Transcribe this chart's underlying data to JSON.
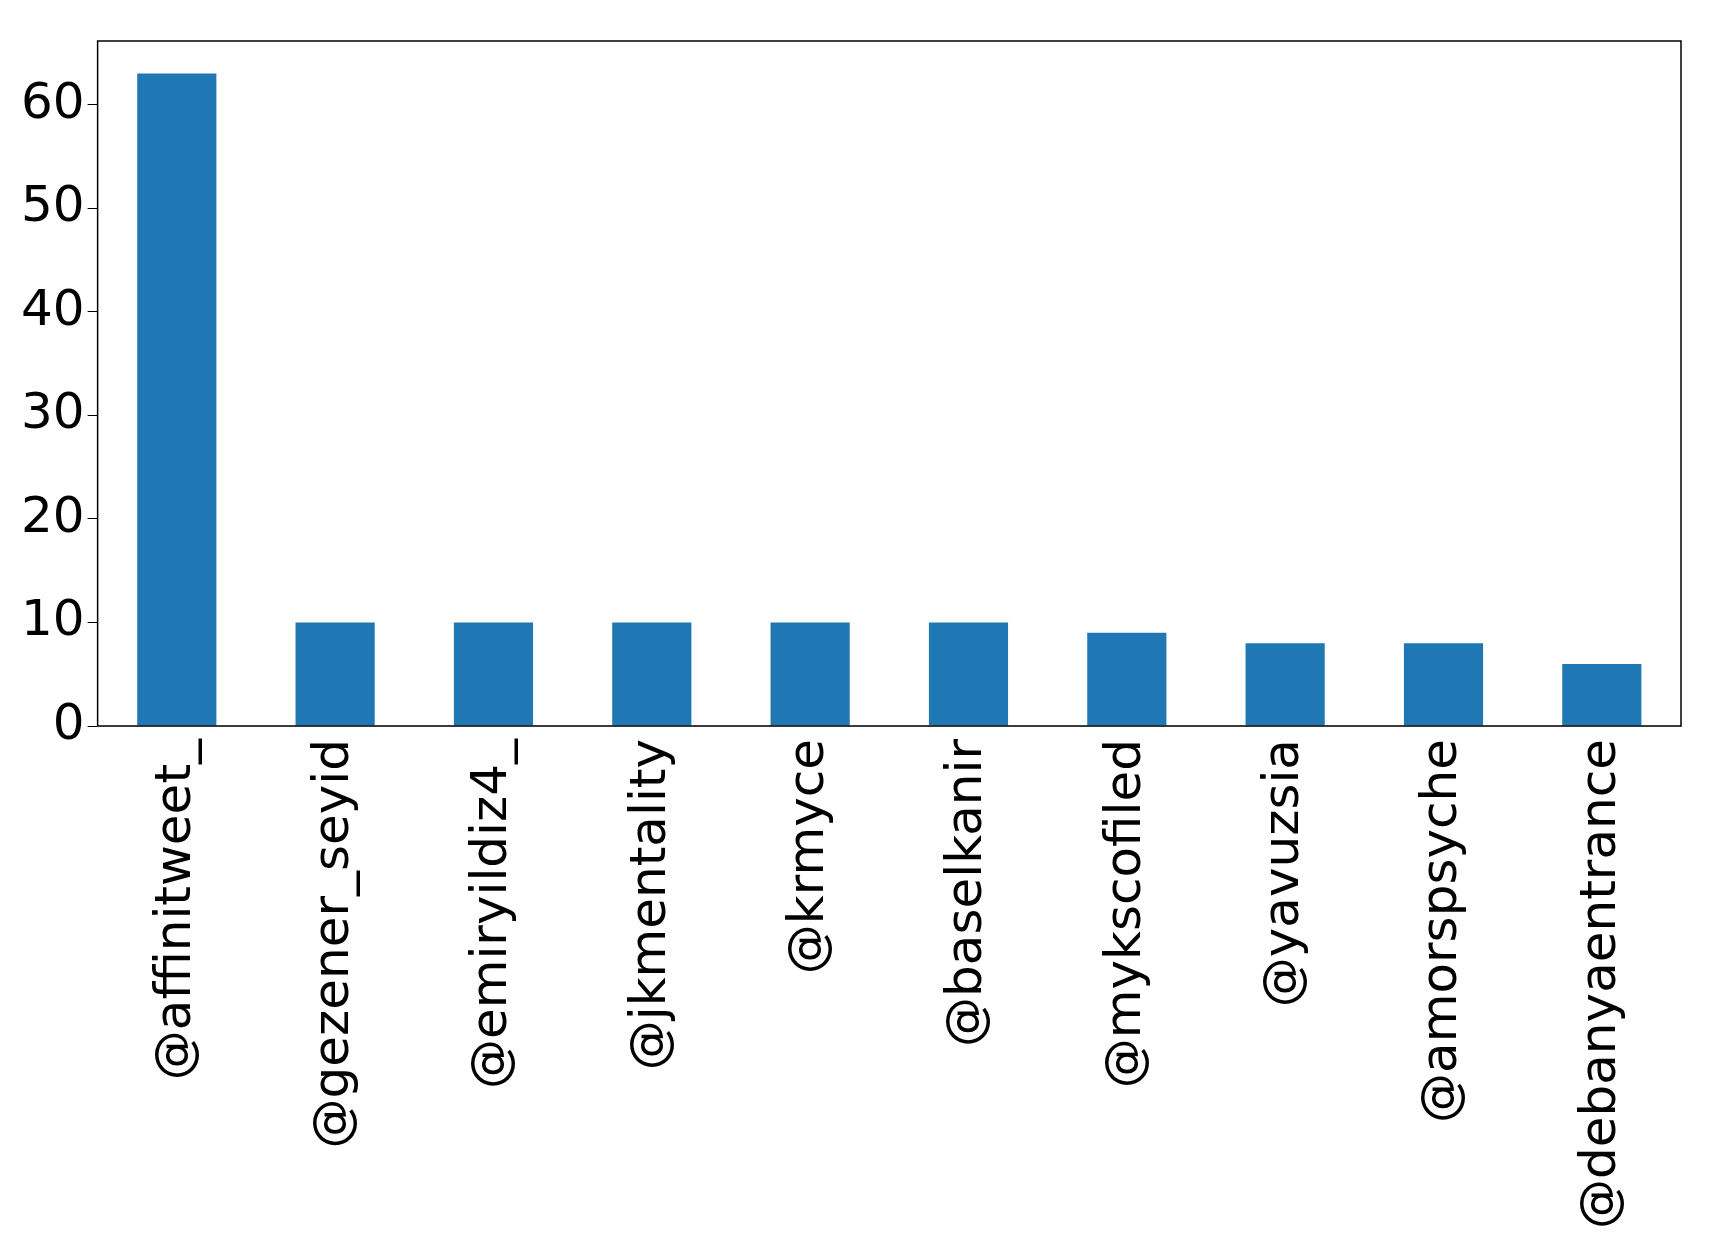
{
  "chart_data": {
    "type": "bar",
    "categories": [
      "@affinitweet_",
      "@gezener_seyid",
      "@emiryildiz4_",
      "@jkmentality",
      "@krmyce",
      "@baselkanir",
      "@mykscofiled",
      "@yavuzsia",
      "@amorspsyche",
      "@debanyaentrance"
    ],
    "values": [
      63,
      10,
      10,
      10,
      10,
      10,
      9,
      8,
      8,
      6
    ],
    "color": "#1f77b4",
    "ylim": [
      0,
      66.15
    ],
    "yticks": [
      0,
      10,
      20,
      30,
      40,
      50,
      60
    ],
    "grid": false,
    "legend": false
  }
}
